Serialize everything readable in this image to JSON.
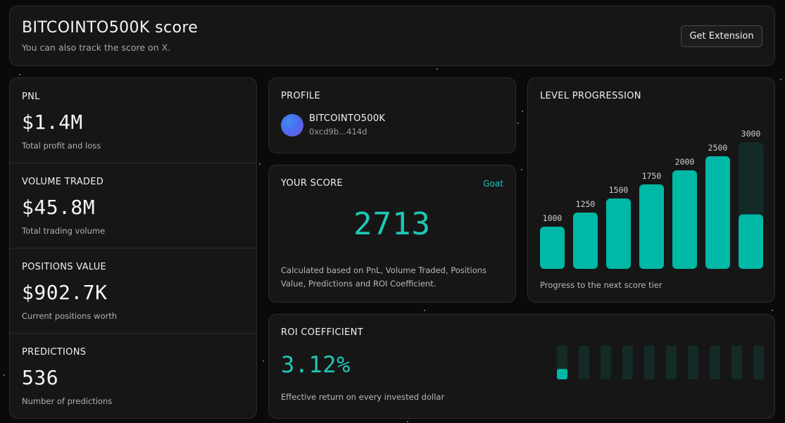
{
  "header": {
    "title": "BITCOINTO500K score",
    "subtitle": "You can also track the score on X.",
    "button_label": "Get Extension"
  },
  "stats": [
    {
      "label": "PNL",
      "value": "$1.4M",
      "desc": "Total profit and loss"
    },
    {
      "label": "VOLUME TRADED",
      "value": "$45.8M",
      "desc": "Total trading volume"
    },
    {
      "label": "POSITIONS VALUE",
      "value": "$902.7K",
      "desc": "Current positions worth"
    },
    {
      "label": "PREDICTIONS",
      "value": "536",
      "desc": "Number of predictions"
    }
  ],
  "profile": {
    "label": "PROFILE",
    "name": "BITCOINTO500K",
    "address": "0xcd9b...414d"
  },
  "score": {
    "label": "YOUR SCORE",
    "tier": "Goat",
    "value": "2713",
    "description": "Calculated based on PnL, Volume Traded, Positions Value, Predictions and ROI Coefficient."
  },
  "level": {
    "label": "LEVEL PROGRESSION",
    "footer": "Progress to the next score tier",
    "tiers": [
      {
        "value": 1000,
        "label": "1000",
        "progress": 1
      },
      {
        "value": 1250,
        "label": "1250",
        "progress": 1
      },
      {
        "value": 1500,
        "label": "1500",
        "progress": 1
      },
      {
        "value": 1750,
        "label": "1750",
        "progress": 1
      },
      {
        "value": 2000,
        "label": "2000",
        "progress": 1
      },
      {
        "value": 2500,
        "label": "2500",
        "progress": 1
      },
      {
        "value": 3000,
        "label": "3000",
        "progress": 0.43
      }
    ]
  },
  "roi": {
    "label": "ROI COEFFICIENT",
    "value": "3.12%",
    "desc": "Effective return on every invested dollar",
    "segments": 10,
    "first_segment_fill": 0.31
  },
  "colors": {
    "accent": "#1ec8b4",
    "bar_fill": "#00b8a6",
    "bar_track": "#142a27",
    "card_bg": "#161616",
    "card_border": "#2c2c2c"
  }
}
